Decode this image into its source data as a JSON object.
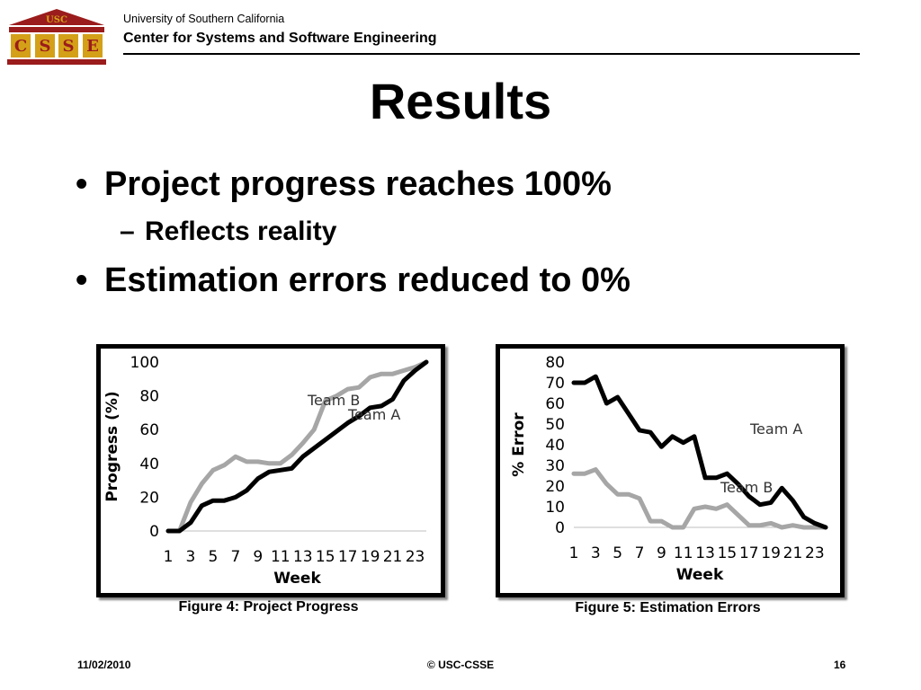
{
  "header": {
    "logo_text": "USC",
    "logo_letters": [
      "C",
      "S",
      "S",
      "E"
    ],
    "university": "University of Southern California",
    "center": "Center for Systems and Software Engineering"
  },
  "slide": {
    "title": "Results",
    "bullets": [
      {
        "marker": "•",
        "text": "Project progress reaches 100%"
      },
      {
        "marker": "–",
        "text": "Reflects reality"
      },
      {
        "marker": "•",
        "text": "Estimation errors reduced to 0%"
      }
    ]
  },
  "captions": {
    "fig4": "Figure 4: Project Progress",
    "fig5": "Figure 5: Estimation Errors"
  },
  "footer": {
    "date": "11/02/2010",
    "copyright": "© USC-CSSE",
    "page": "16"
  },
  "colors": {
    "logo_red": "#9b1c1c",
    "logo_gold": "#d4a017",
    "team_a": "#000000",
    "team_b": "#a6a6a6"
  },
  "chart_data": [
    {
      "type": "line",
      "title": "",
      "xlabel": "Week",
      "ylabel": "Progress (%)",
      "xlim": [
        1,
        24
      ],
      "ylim": [
        0,
        100
      ],
      "yticks": [
        0,
        20,
        40,
        60,
        80,
        100
      ],
      "xticks": [
        1,
        3,
        5,
        7,
        9,
        11,
        13,
        15,
        17,
        19,
        21,
        23
      ],
      "grid": false,
      "x": [
        1,
        2,
        3,
        4,
        5,
        6,
        7,
        8,
        9,
        10,
        11,
        12,
        13,
        14,
        15,
        16,
        17,
        18,
        19,
        20,
        21,
        22,
        23,
        24
      ],
      "series": [
        {
          "name": "Team A",
          "values": [
            0,
            0,
            5,
            15,
            18,
            18,
            20,
            24,
            31,
            35,
            36,
            37,
            44,
            49,
            54,
            59,
            64,
            68,
            73,
            74,
            78,
            89,
            95,
            100
          ]
        },
        {
          "name": "Team B",
          "values": [
            0,
            0,
            17,
            28,
            36,
            39,
            44,
            41,
            41,
            40,
            40,
            45,
            52,
            60,
            77,
            80,
            84,
            85,
            91,
            93,
            93,
            95,
            97,
            100
          ]
        }
      ]
    },
    {
      "type": "line",
      "title": "",
      "xlabel": "Week",
      "ylabel": "% Error",
      "xlim": [
        1,
        24
      ],
      "ylim": [
        0,
        80
      ],
      "yticks": [
        0,
        10,
        20,
        30,
        40,
        50,
        60,
        70,
        80
      ],
      "xticks": [
        1,
        3,
        5,
        7,
        9,
        11,
        13,
        15,
        17,
        19,
        21,
        23
      ],
      "grid": false,
      "x": [
        1,
        2,
        3,
        4,
        5,
        6,
        7,
        8,
        9,
        10,
        11,
        12,
        13,
        14,
        15,
        16,
        17,
        18,
        19,
        20,
        21,
        22,
        23,
        24
      ],
      "series": [
        {
          "name": "Team A",
          "values": [
            70,
            70,
            73,
            60,
            63,
            55,
            47,
            46,
            39,
            44,
            41,
            44,
            24,
            24,
            26,
            21,
            15,
            11,
            12,
            19,
            13,
            5,
            2,
            0
          ]
        },
        {
          "name": "Team B",
          "values": [
            26,
            26,
            28,
            21,
            16,
            16,
            14,
            3,
            3,
            0,
            0,
            9,
            10,
            9,
            11,
            6,
            1,
            1,
            2,
            0,
            1,
            0,
            0,
            0
          ]
        }
      ]
    }
  ]
}
